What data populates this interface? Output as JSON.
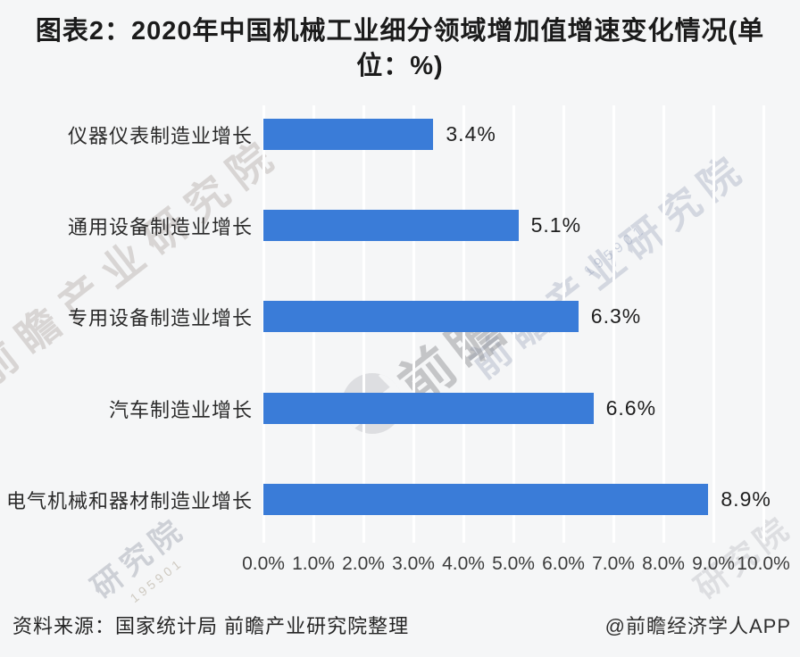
{
  "title": "图表2：2020年中国机械工业细分领域增加值增速变化情况(单位：%)",
  "chart_data": {
    "type": "bar",
    "orientation": "horizontal",
    "categories": [
      "仪器仪表制造业增长",
      "通用设备制造业增长",
      "专用设备制造业增长",
      "汽车制造业增长",
      "电气机械和器材制造业增长"
    ],
    "values": [
      3.4,
      5.1,
      6.3,
      6.6,
      8.9
    ],
    "value_labels": [
      "3.4%",
      "5.1%",
      "6.3%",
      "6.6%",
      "8.9%"
    ],
    "x_ticks": [
      "0.0%",
      "1.0%",
      "2.0%",
      "3.0%",
      "4.0%",
      "5.0%",
      "6.0%",
      "7.0%",
      "8.0%",
      "9.0%",
      "10.0%"
    ],
    "xlim": [
      0,
      10
    ],
    "xlabel": "",
    "ylabel": "",
    "grid": "vertical-white-gridlines",
    "legend": "none",
    "bar_color": "#3a7cd8"
  },
  "footer": {
    "source": "资料来源：国家统计局 前瞻产业研究院整理",
    "credit": "@前瞻经济学人APP"
  },
  "watermark": {
    "full_text": "前瞻产业研究院",
    "center_text": "前瞻",
    "bottom_left_text": "研究院",
    "bottom_right_text": "研究院",
    "numbers": "195901"
  }
}
